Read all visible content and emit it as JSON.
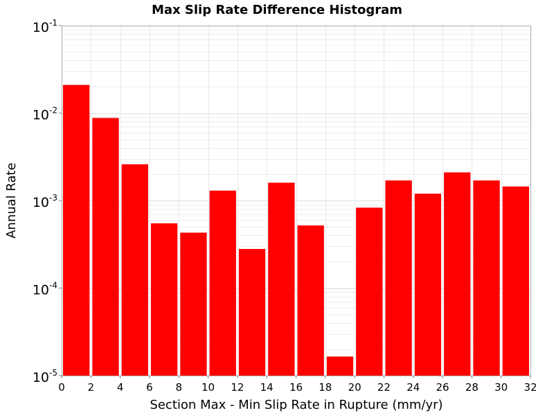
{
  "chart_data": {
    "type": "bar",
    "title": "Max Slip Rate Difference Histogram",
    "xlabel": "Section Max - Min Slip Rate in Rupture (mm/yr)",
    "ylabel": "Annual Rate",
    "xlim": [
      0,
      32
    ],
    "ylim": [
      1e-05,
      0.1
    ],
    "yscale": "log",
    "grid": true,
    "bar_color": "#ff0000",
    "x_ticks": [
      0,
      2,
      4,
      6,
      8,
      10,
      12,
      14,
      16,
      18,
      20,
      22,
      24,
      26,
      28,
      30,
      32
    ],
    "y_ticks": [
      {
        "base": "10",
        "exp": "-1",
        "value": 0.1
      },
      {
        "base": "10",
        "exp": "-2",
        "value": 0.01
      },
      {
        "base": "10",
        "exp": "-3",
        "value": 0.001
      },
      {
        "base": "10",
        "exp": "-4",
        "value": 0.0001
      },
      {
        "base": "10",
        "exp": "-5",
        "value": 1e-05
      }
    ],
    "bin_width": 2,
    "bins": [
      {
        "x": 1,
        "y": 0.021
      },
      {
        "x": 3,
        "y": 0.0088
      },
      {
        "x": 5,
        "y": 0.0026
      },
      {
        "x": 7,
        "y": 0.00055
      },
      {
        "x": 9,
        "y": 0.00043
      },
      {
        "x": 11,
        "y": 0.0013
      },
      {
        "x": 13,
        "y": 0.00028
      },
      {
        "x": 15,
        "y": 0.0016
      },
      {
        "x": 17,
        "y": 0.00052
      },
      {
        "x": 19,
        "y": 1.65e-05
      },
      {
        "x": 21,
        "y": 0.00083
      },
      {
        "x": 23,
        "y": 0.0017
      },
      {
        "x": 25,
        "y": 0.0012
      },
      {
        "x": 27,
        "y": 0.0021
      },
      {
        "x": 29,
        "y": 0.0017
      },
      {
        "x": 31,
        "y": 0.00145
      }
    ]
  }
}
